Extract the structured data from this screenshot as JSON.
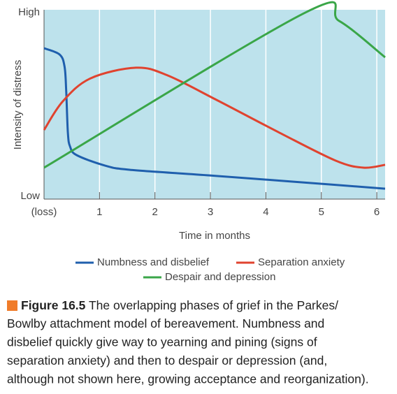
{
  "chart_data": {
    "type": "line",
    "ylabel": "Intensity of distress",
    "xlabel": "Time in months",
    "xlim": [
      0,
      6.15
    ],
    "xticks": [
      {
        "value": 0,
        "label": "(loss)"
      },
      1,
      2,
      3,
      4,
      5,
      6
    ],
    "ylim": [
      0,
      100
    ],
    "yticks": [
      {
        "value": 0,
        "label": "Low"
      },
      {
        "value": 100,
        "label": "High"
      }
    ],
    "grid": true,
    "background": "#bde2ec",
    "series": [
      {
        "name": "Numbness and disbelief",
        "color": "#1f5fad",
        "x": [
          0,
          0.28,
          0.37,
          0.4,
          0.43,
          0.47,
          0.59,
          1.1,
          1.54,
          2.99,
          4.5,
          6.15
        ],
        "values": [
          79.7,
          76.4,
          70,
          57,
          35,
          27.7,
          23.2,
          17.7,
          15.5,
          12.5,
          9.2,
          5.5
        ]
      },
      {
        "name": "Separation anxiety",
        "color": "#e0432f",
        "x": [
          0,
          0.34,
          0.84,
          1.66,
          2.23,
          3.11,
          4.25,
          5.26,
          5.76,
          6.15
        ],
        "values": [
          36.5,
          51.7,
          63.8,
          69.4,
          65.3,
          52.4,
          35,
          20.3,
          16.6,
          18.1
        ]
      },
      {
        "name": "Despair and depression",
        "color": "#3aa648",
        "x": [
          0,
          4.71,
          5.32,
          6.15
        ],
        "values": [
          16.6,
          98.5,
          94.1,
          74.9
        ]
      }
    ]
  },
  "caption": {
    "label": "Figure 16.5",
    "lines": [
      " The overlapping phases of grief in the Parkes/",
      "Bowlby attachment model of bereavement. Numbness and",
      "disbelief quickly give way to yearning and pining (signs of",
      "separation anxiety) and then to despair or depression (and,",
      "although not shown here, growing acceptance and reorganization)."
    ]
  }
}
